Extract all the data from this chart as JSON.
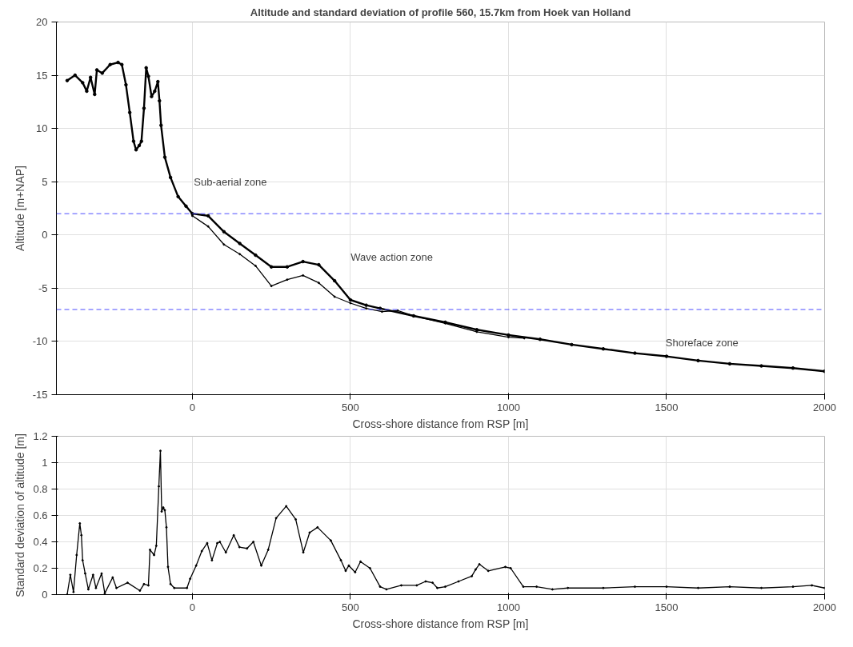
{
  "chart_data": [
    {
      "type": "line",
      "title": "Altitude and standard deviation of profile 560, 15.7km from Hoek van Holland",
      "xlabel": "Cross-shore distance from RSP [m]",
      "ylabel": "Altitude [m+NAP]",
      "xlim": [
        -430,
        2000
      ],
      "xticks": [
        0,
        500,
        1000,
        1500,
        2000
      ],
      "ylim": [
        -15,
        20
      ],
      "yticks": [
        -15,
        -10,
        -5,
        0,
        5,
        10,
        15,
        20
      ],
      "grid": true,
      "marker": "circle",
      "line_style": "solid",
      "series": [
        {
          "color": "#000000",
          "x": [
            -396,
            -371,
            -347,
            -334,
            -322,
            -309,
            -302,
            -285,
            -260,
            -235,
            -223,
            -210,
            -198,
            -186,
            -178,
            -168,
            -161,
            -153,
            -146,
            -139,
            -129,
            -119,
            -109,
            -104,
            -99,
            -87,
            -69,
            -45,
            -20,
            0,
            50,
            100,
            150,
            200,
            250,
            300,
            350,
            400,
            450,
            500,
            550,
            594,
            700,
            800,
            900,
            1000,
            1100,
            1200,
            1300,
            1400,
            1500,
            1600,
            1700,
            1800,
            1900,
            2000
          ],
          "values": [
            14.5,
            15.0,
            14.3,
            13.5,
            14.8,
            13.2,
            15.5,
            15.2,
            16.0,
            16.2,
            16.0,
            14.1,
            11.5,
            8.8,
            8.0,
            8.4,
            8.8,
            11.9,
            15.7,
            14.9,
            13.0,
            13.5,
            14.4,
            12.6,
            10.3,
            7.3,
            5.4,
            3.6,
            2.7,
            2.0,
            1.8,
            0.3,
            -0.8,
            -1.9,
            -3.0,
            -3.0,
            -2.5,
            -2.8,
            -4.3,
            -6.1,
            -6.6,
            -6.9,
            -7.6,
            -8.2,
            -8.9,
            -9.4,
            -9.8,
            -10.3,
            -10.7,
            -11.1,
            -11.4,
            -11.8,
            -12.1,
            -12.3,
            -12.5,
            -12.8
          ]
        },
        {
          "color": "#000000",
          "x": [
            0,
            50,
            100,
            150,
            200,
            250,
            300,
            350,
            400,
            450,
            500,
            550,
            600,
            650,
            700,
            800,
            900,
            1000,
            1050
          ],
          "values": [
            1.8,
            0.8,
            -0.9,
            -1.8,
            -2.9,
            -4.8,
            -4.2,
            -3.8,
            -4.5,
            -5.8,
            -6.4,
            -6.9,
            -7.2,
            -7.1,
            -7.6,
            -8.3,
            -9.1,
            -9.6,
            -9.7
          ]
        }
      ],
      "ref_lines": [
        {
          "axis": "y",
          "value": 2,
          "color": "#4d4dff",
          "line_style": "dashed"
        },
        {
          "axis": "y",
          "value": -7,
          "color": "#4d4dff",
          "line_style": "dashed"
        }
      ],
      "annotations": [
        "Sub-aerial zone",
        "Wave action zone",
        "Shoreface zone"
      ]
    },
    {
      "type": "line",
      "xlabel": "Cross-shore distance from RSP [m]",
      "ylabel": "Standard deviation of altitude [m]",
      "xlim": [
        -430,
        2000
      ],
      "xticks": [
        0,
        500,
        1000,
        1500,
        2000
      ],
      "ylim": [
        0,
        1.2
      ],
      "yticks": [
        0,
        0.2,
        0.4,
        0.6,
        0.8,
        1,
        1.2
      ],
      "grid": true,
      "marker": "circle",
      "line_style": "solid",
      "series": [
        {
          "color": "#000000",
          "x": [
            -396,
            -386,
            -376,
            -366,
            -356,
            -351,
            -347,
            -339,
            -329,
            -314,
            -305,
            -287,
            -277,
            -252,
            -240,
            -205,
            -166,
            -153,
            -139,
            -134,
            -121,
            -114,
            -106,
            -101,
            -97,
            -92,
            -87,
            -82,
            -77,
            -69,
            -57,
            -17,
            -7,
            12,
            30,
            47,
            62,
            79,
            87,
            106,
            131,
            149,
            173,
            193,
            218,
            240,
            265,
            297,
            327,
            351,
            371,
            396,
            438,
            470,
            485,
            495,
            515,
            532,
            562,
            594,
            614,
            661,
            710,
            738,
            760,
            775,
            800,
            842,
            884,
            896,
            908,
            936,
            990,
            1007,
            1047,
            1089,
            1139,
            1188,
            1300,
            1400,
            1500,
            1600,
            1700,
            1800,
            1900,
            1960,
            2000
          ],
          "values": [
            0.0,
            0.15,
            0.02,
            0.3,
            0.54,
            0.45,
            0.26,
            0.16,
            0.04,
            0.15,
            0.05,
            0.16,
            0.01,
            0.13,
            0.05,
            0.09,
            0.03,
            0.08,
            0.07,
            0.34,
            0.3,
            0.37,
            0.82,
            1.09,
            0.63,
            0.66,
            0.64,
            0.51,
            0.21,
            0.08,
            0.05,
            0.05,
            0.12,
            0.22,
            0.33,
            0.39,
            0.26,
            0.39,
            0.4,
            0.32,
            0.45,
            0.36,
            0.35,
            0.4,
            0.22,
            0.34,
            0.58,
            0.67,
            0.57,
            0.32,
            0.47,
            0.51,
            0.41,
            0.26,
            0.18,
            0.22,
            0.17,
            0.25,
            0.2,
            0.06,
            0.04,
            0.07,
            0.07,
            0.1,
            0.09,
            0.05,
            0.06,
            0.1,
            0.14,
            0.19,
            0.23,
            0.18,
            0.21,
            0.2,
            0.06,
            0.06,
            0.04,
            0.05,
            0.05,
            0.06,
            0.06,
            0.05,
            0.06,
            0.05,
            0.06,
            0.07,
            0.05
          ]
        }
      ]
    }
  ]
}
